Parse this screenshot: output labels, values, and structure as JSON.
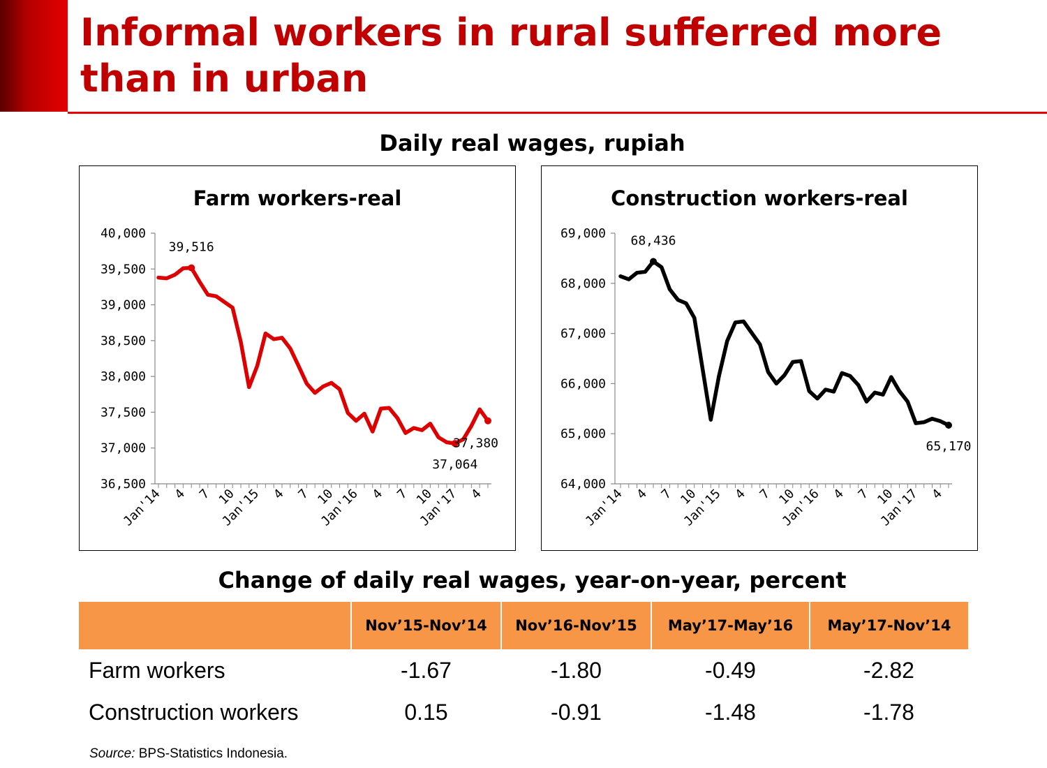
{
  "slide": {
    "title": "Informal workers in rural sufferred more than in urban",
    "subtitle_top": "Daily real wages, rupiah",
    "subtitle_table": "Change of daily real wages, year-on-year, percent",
    "source_label": "Source:",
    "source_text": " BPS-Statistics Indonesia."
  },
  "chart_data": [
    {
      "type": "line",
      "title": "Farm workers-real",
      "color": "#dd0000",
      "ylim": [
        36500,
        40000
      ],
      "yticks": [
        "36,500",
        "37,000",
        "37,500",
        "38,000",
        "38,500",
        "39,000",
        "39,500",
        "40,000"
      ],
      "ytick_values": [
        36500,
        37000,
        37500,
        38000,
        38500,
        39000,
        39500,
        40000
      ],
      "xtick_labels": [
        "Jan'14",
        "4",
        "7",
        "10",
        "Jan'15",
        "4",
        "7",
        "10",
        "Jan'16",
        "4",
        "7",
        "10",
        "Jan'17",
        "4"
      ],
      "xtick_months": [
        1,
        4,
        7,
        10,
        13,
        16,
        19,
        22,
        25,
        28,
        31,
        34,
        37,
        40
      ],
      "x": [
        1,
        2,
        3,
        4,
        5,
        6,
        7,
        8,
        9,
        10,
        11,
        12,
        13,
        14,
        15,
        16,
        17,
        18,
        19,
        20,
        21,
        22,
        23,
        24,
        25,
        26,
        27,
        28,
        29,
        30,
        31,
        32,
        33,
        34,
        35,
        36,
        37,
        38,
        39,
        40,
        41
      ],
      "values": [
        39380,
        39370,
        39420,
        39510,
        39516,
        39320,
        39140,
        39120,
        39040,
        38960,
        38480,
        37850,
        38150,
        38600,
        38520,
        38540,
        38390,
        38150,
        37900,
        37770,
        37860,
        37910,
        37820,
        37490,
        37380,
        37480,
        37230,
        37550,
        37560,
        37420,
        37210,
        37280,
        37250,
        37340,
        37150,
        37080,
        37064,
        37120,
        37310,
        37540,
        37380
      ],
      "labels": [
        {
          "text": "39,516",
          "index": 4,
          "pos": "above"
        },
        {
          "text": "37,064",
          "index": 36,
          "pos": "below"
        },
        {
          "text": "37,380",
          "index": 40,
          "pos": "below-right"
        }
      ]
    },
    {
      "type": "line",
      "title": "Construction workers-real",
      "color": "#000000",
      "ylim": [
        64000,
        69000
      ],
      "yticks": [
        "64,000",
        "65,000",
        "66,000",
        "67,000",
        "68,000",
        "69,000"
      ],
      "ytick_values": [
        64000,
        65000,
        66000,
        67000,
        68000,
        69000
      ],
      "xtick_labels": [
        "Jan'14",
        "4",
        "7",
        "10",
        "Jan'15",
        "4",
        "7",
        "10",
        "Jan'16",
        "4",
        "7",
        "10",
        "Jan'17",
        "4"
      ],
      "xtick_months": [
        1,
        4,
        7,
        10,
        13,
        16,
        19,
        22,
        25,
        28,
        31,
        34,
        37,
        40
      ],
      "x": [
        1,
        2,
        3,
        4,
        5,
        6,
        7,
        8,
        9,
        10,
        11,
        12,
        13,
        14,
        15,
        16,
        17,
        18,
        19,
        20,
        21,
        22,
        23,
        24,
        25,
        26,
        27,
        28,
        29,
        30,
        31,
        32,
        33,
        34,
        35,
        36,
        37,
        38,
        39,
        40,
        41
      ],
      "values": [
        68140,
        68080,
        68210,
        68230,
        68436,
        68320,
        67880,
        67670,
        67600,
        67310,
        66300,
        65280,
        66150,
        66850,
        67220,
        67240,
        67010,
        66780,
        66230,
        66000,
        66170,
        66430,
        66450,
        65850,
        65700,
        65880,
        65840,
        66210,
        66150,
        65970,
        65640,
        65820,
        65780,
        66130,
        65850,
        65640,
        65210,
        65230,
        65300,
        65250,
        65170
      ],
      "labels": [
        {
          "text": "68,436",
          "index": 4,
          "pos": "above"
        },
        {
          "text": "65,170",
          "index": 40,
          "pos": "below"
        }
      ]
    }
  ],
  "table": {
    "columns": [
      "",
      "Nov’15-Nov’14",
      "Nov’16-Nov’15",
      "May’17-May’16",
      "May’17-Nov’14"
    ],
    "rows": [
      {
        "label": "Farm workers",
        "values": [
          "-1.67",
          "-1.80",
          "-0.49",
          "-2.82"
        ]
      },
      {
        "label": "Construction workers",
        "values": [
          "0.15",
          "-0.91",
          "-1.48",
          "-1.78"
        ]
      }
    ]
  }
}
